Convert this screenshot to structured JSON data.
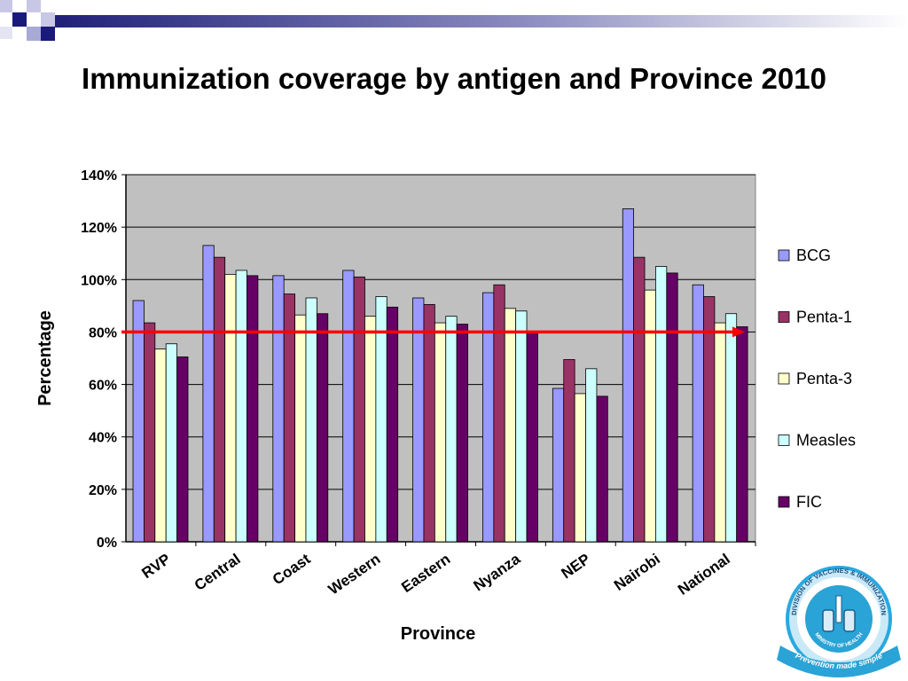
{
  "slide": {
    "title": "Immunization coverage by antigen and Province 2010"
  },
  "logo": {
    "ring_text": "DIVISION OF VACCINES & IMMUNIZATION",
    "inner_text": "MINISTRY OF HEALTH",
    "ribbon_text": "Prevention made simple"
  },
  "chart_data": {
    "type": "bar",
    "title": "",
    "xlabel": "Province",
    "ylabel": "Percentage",
    "ylim": [
      0,
      140
    ],
    "yticks": [
      "0%",
      "20%",
      "40%",
      "60%",
      "80%",
      "100%",
      "120%",
      "140%"
    ],
    "grid": true,
    "legend_position": "right",
    "categories": [
      "RVP",
      "Central",
      "Coast",
      "Western",
      "Eastern",
      "Nyanza",
      "NEP",
      "Nairobi",
      "National"
    ],
    "series": [
      {
        "name": "BCG",
        "color": "#9999ff",
        "values": [
          92,
          113,
          101.5,
          103.5,
          93,
          95,
          58.5,
          127,
          98
        ]
      },
      {
        "name": "Penta-1",
        "color": "#993366",
        "values": [
          83.5,
          108.5,
          94.5,
          101,
          90.5,
          98,
          69.5,
          108.5,
          93.5
        ]
      },
      {
        "name": "Penta-3",
        "color": "#ffffcc",
        "values": [
          73.5,
          102,
          86.5,
          86,
          83.5,
          89,
          56.5,
          96,
          83.5
        ]
      },
      {
        "name": "Measles",
        "color": "#ccffff",
        "values": [
          75.5,
          103.5,
          93,
          93.5,
          86,
          88,
          66,
          105,
          87
        ]
      },
      {
        "name": "FIC",
        "color": "#660066",
        "values": [
          70.5,
          101.5,
          87,
          89.5,
          83,
          80,
          55.5,
          102.5,
          82
        ]
      }
    ],
    "reference_line": {
      "value": 80,
      "color": "#ff0000"
    },
    "plot_background": "#c0c0c0"
  }
}
